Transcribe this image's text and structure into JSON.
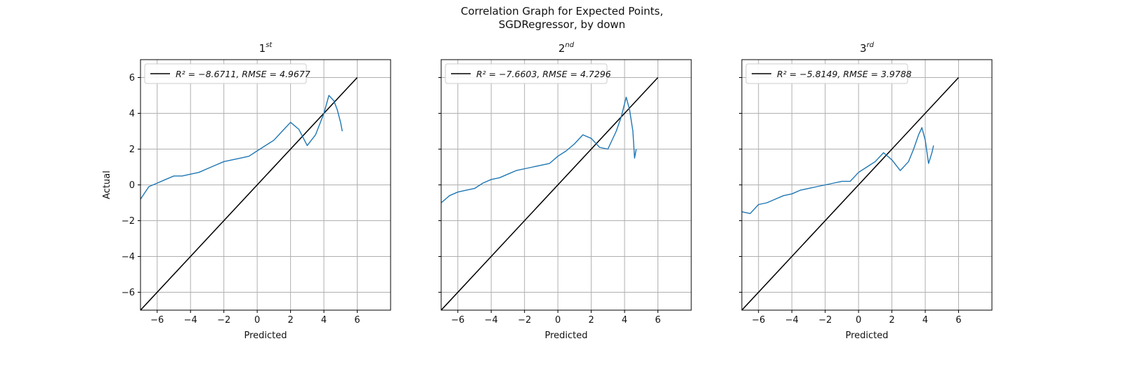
{
  "figure": {
    "title_line1": "Correlation Graph for Expected Points,",
    "title_line2": "SGDRegressor, by down"
  },
  "chart_data": [
    {
      "type": "line",
      "title": "1",
      "title_sup": "st",
      "xlabel": "Predicted",
      "ylabel": "Actual",
      "xlim": [
        -7,
        8
      ],
      "ylim": [
        -7,
        7
      ],
      "xticks": [
        -6,
        -4,
        -2,
        0,
        2,
        4,
        6
      ],
      "yticks": [
        -6,
        -4,
        -2,
        0,
        2,
        4,
        6
      ],
      "grid": true,
      "legend": {
        "position": "top-left",
        "label": "R² = −8.6711, RMSE = 4.9677"
      },
      "series": [
        {
          "role": "identity",
          "color": "#000000",
          "x": [
            -7,
            6
          ],
          "y": [
            -7,
            6
          ]
        },
        {
          "role": "observed",
          "color": "#1f77b4",
          "x": [
            -7.0,
            -6.5,
            -6.0,
            -5.5,
            -5.0,
            -4.5,
            -4.0,
            -3.5,
            -3.0,
            -2.5,
            -2.0,
            -1.5,
            -1.0,
            -0.5,
            0.0,
            0.5,
            1.0,
            1.5,
            2.0,
            2.5,
            3.0,
            3.5,
            4.0,
            4.3,
            4.6,
            4.8,
            5.0,
            5.1
          ],
          "y": [
            -0.8,
            -0.1,
            0.1,
            0.3,
            0.5,
            0.5,
            0.6,
            0.7,
            0.9,
            1.1,
            1.3,
            1.4,
            1.5,
            1.6,
            1.9,
            2.2,
            2.5,
            3.0,
            3.5,
            3.1,
            2.2,
            2.8,
            4.0,
            5.0,
            4.7,
            4.2,
            3.5,
            3.0
          ]
        }
      ]
    },
    {
      "type": "line",
      "title": "2",
      "title_sup": "nd",
      "xlabel": "Predicted",
      "ylabel": "",
      "xlim": [
        -7,
        8
      ],
      "ylim": [
        -7,
        7
      ],
      "xticks": [
        -6,
        -4,
        -2,
        0,
        2,
        4,
        6
      ],
      "yticks": [
        -6,
        -4,
        -2,
        0,
        2,
        4,
        6
      ],
      "grid": true,
      "legend": {
        "position": "top-left",
        "label": "R² = −7.6603, RMSE = 4.7296"
      },
      "series": [
        {
          "role": "identity",
          "color": "#000000",
          "x": [
            -7,
            6
          ],
          "y": [
            -7,
            6
          ]
        },
        {
          "role": "observed",
          "color": "#1f77b4",
          "x": [
            -7.0,
            -6.5,
            -6.0,
            -5.5,
            -5.0,
            -4.5,
            -4.0,
            -3.5,
            -3.0,
            -2.5,
            -2.0,
            -1.5,
            -1.0,
            -0.5,
            0.0,
            0.5,
            1.0,
            1.5,
            2.0,
            2.5,
            3.0,
            3.5,
            3.8,
            4.1,
            4.3,
            4.5,
            4.6,
            4.7
          ],
          "y": [
            -1.0,
            -0.6,
            -0.4,
            -0.3,
            -0.2,
            0.1,
            0.3,
            0.4,
            0.6,
            0.8,
            0.9,
            1.0,
            1.1,
            1.2,
            1.6,
            1.9,
            2.3,
            2.8,
            2.6,
            2.1,
            2.0,
            3.0,
            3.8,
            4.9,
            4.2,
            3.0,
            1.5,
            2.0
          ]
        }
      ]
    },
    {
      "type": "line",
      "title": "3",
      "title_sup": "rd",
      "xlabel": "Predicted",
      "ylabel": "",
      "xlim": [
        -7,
        8
      ],
      "ylim": [
        -7,
        7
      ],
      "xticks": [
        -6,
        -4,
        -2,
        0,
        2,
        4,
        6
      ],
      "yticks": [
        -6,
        -4,
        -2,
        0,
        2,
        4,
        6
      ],
      "grid": true,
      "legend": {
        "position": "top-left",
        "label": "R² = −5.8149, RMSE = 3.9788"
      },
      "series": [
        {
          "role": "identity",
          "color": "#000000",
          "x": [
            -7,
            6
          ],
          "y": [
            -7,
            6
          ]
        },
        {
          "role": "observed",
          "color": "#1f77b4",
          "x": [
            -7.0,
            -6.5,
            -6.0,
            -5.5,
            -5.0,
            -4.5,
            -4.0,
            -3.5,
            -3.0,
            -2.5,
            -2.0,
            -1.5,
            -1.0,
            -0.5,
            0.0,
            0.5,
            1.0,
            1.5,
            2.0,
            2.5,
            3.0,
            3.3,
            3.6,
            3.8,
            4.0,
            4.2,
            4.4,
            4.5
          ],
          "y": [
            -1.5,
            -1.6,
            -1.1,
            -1.0,
            -0.8,
            -0.6,
            -0.5,
            -0.3,
            -0.2,
            -0.1,
            0.0,
            0.1,
            0.2,
            0.2,
            0.7,
            1.0,
            1.3,
            1.8,
            1.4,
            0.8,
            1.3,
            2.0,
            2.8,
            3.2,
            2.5,
            1.2,
            1.8,
            2.2
          ]
        }
      ]
    }
  ]
}
